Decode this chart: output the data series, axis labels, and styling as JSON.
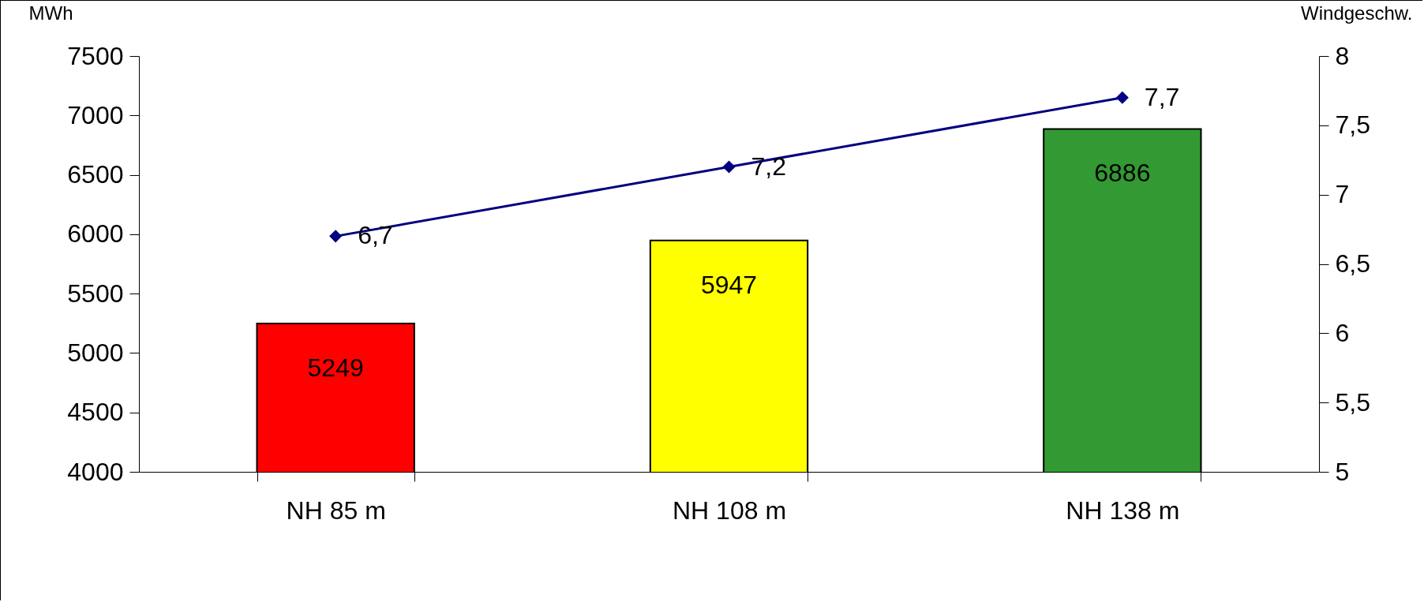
{
  "chart_data": {
    "type": "bar",
    "ylabel": "MWh",
    "y2label": "Windgeschw.",
    "categories": [
      "NH 85 m",
      "NH 108 m",
      "NH 138 m"
    ],
    "series": [
      {
        "colors": [
          "#ff0000",
          "#ffff00",
          "#339933"
        ],
        "values": [
          5249,
          5947,
          6886
        ],
        "value_labels": [
          "5249",
          "5947",
          "6886"
        ]
      },
      {
        "type": "line",
        "axis": "y2",
        "color": "#000080",
        "values": [
          6.7,
          7.2,
          7.7
        ],
        "value_labels": [
          "6,7",
          "7,2",
          "7,7"
        ]
      }
    ],
    "ylim": [
      4000,
      7500
    ],
    "yticks": [
      4000,
      4500,
      5000,
      5500,
      6000,
      6500,
      7000,
      7500
    ],
    "y2lim": [
      5,
      8
    ],
    "y2ticks": [
      5,
      {
        "value": 5.5,
        "label": "5,5"
      },
      6,
      {
        "value": 6.5,
        "label": "6,5"
      },
      7,
      {
        "value": 7.5,
        "label": "7,5"
      },
      8
    ],
    "marker": "diamond",
    "line_style": "solid",
    "grid": false
  }
}
